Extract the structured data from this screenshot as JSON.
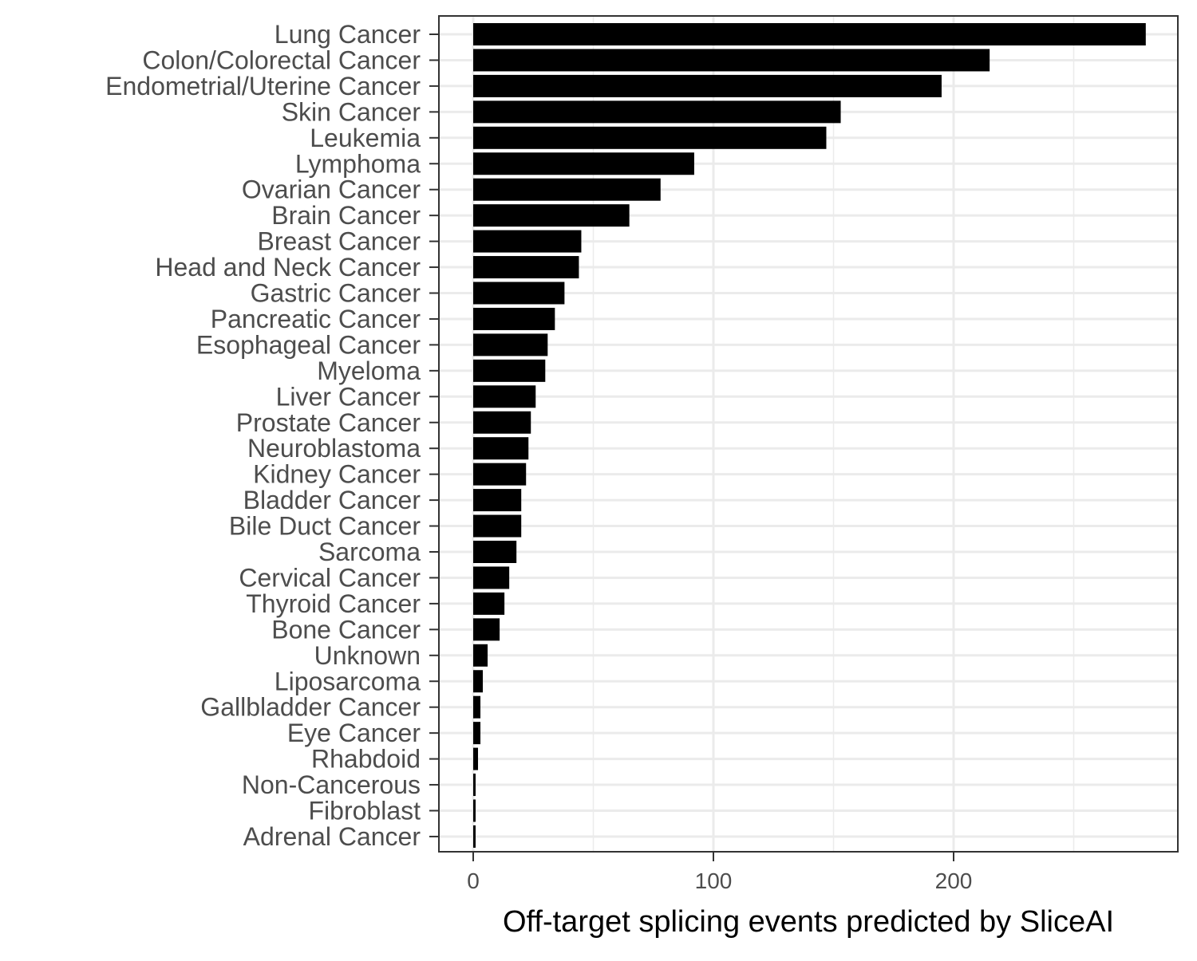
{
  "chart_data": {
    "type": "bar",
    "orientation": "horizontal",
    "xlabel": "Off-target splicing events predicted by SliceAI",
    "ylabel": "",
    "xlim": [
      -14,
      294
    ],
    "xticks": [
      0,
      100,
      200
    ],
    "grid": true,
    "categories": [
      "Lung Cancer",
      "Colon/Colorectal Cancer",
      "Endometrial/Uterine Cancer",
      "Skin Cancer",
      "Leukemia",
      "Lymphoma",
      "Ovarian Cancer",
      "Brain Cancer",
      "Breast Cancer",
      "Head and Neck Cancer",
      "Gastric Cancer",
      "Pancreatic Cancer",
      "Esophageal Cancer",
      "Myeloma",
      "Liver Cancer",
      "Prostate Cancer",
      "Neuroblastoma",
      "Kidney Cancer",
      "Bladder Cancer",
      "Bile Duct Cancer",
      "Sarcoma",
      "Cervical Cancer",
      "Thyroid Cancer",
      "Bone Cancer",
      "Unknown",
      "Liposarcoma",
      "Gallbladder Cancer",
      "Eye Cancer",
      "Rhabdoid",
      "Non-Cancerous",
      "Fibroblast",
      "Adrenal Cancer"
    ],
    "values": [
      280,
      215,
      195,
      153,
      147,
      92,
      78,
      65,
      45,
      44,
      38,
      34,
      31,
      30,
      26,
      24,
      23,
      22,
      20,
      20,
      18,
      15,
      13,
      11,
      6,
      4,
      3,
      3,
      2,
      1,
      1,
      1
    ],
    "colors": {
      "bar": "#000000",
      "grid": "#ebebeb",
      "panel_border": "#333333",
      "tick_text": "#4d4d4d"
    }
  }
}
